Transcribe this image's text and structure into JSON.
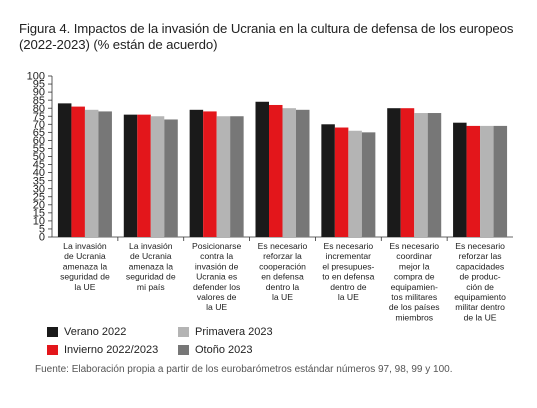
{
  "title": "Figura 4. Impactos de la invasión de Ucrania en la cultura de defensa de los europeos (2022-2023) (% están de acuerdo)",
  "source": "Fuente: Elaboración propia a partir de los eurobarómetros estándar números 97, 98, 99 y 100.",
  "colors": {
    "verano": "#1a1a1a",
    "invierno": "#e3161b",
    "primavera": "#b4b4b4",
    "otono": "#777777"
  },
  "chart_data": {
    "type": "bar",
    "ylim": [
      0,
      100
    ],
    "yticks": [
      0,
      5,
      10,
      15,
      20,
      25,
      30,
      35,
      40,
      45,
      50,
      55,
      60,
      65,
      70,
      75,
      80,
      85,
      90,
      95,
      100
    ],
    "ytick_labels": [
      "0",
      "5",
      "10",
      "15",
      "20",
      "25",
      "30",
      "35",
      "40",
      "45",
      "50",
      "55",
      "60",
      "65",
      "70",
      "75",
      "80",
      "85",
      "90",
      "95",
      "100"
    ],
    "categories": [
      [
        "La invasión",
        "de Ucrania",
        "amenaza la",
        "seguridad de",
        "la UE"
      ],
      [
        "La invasión",
        "de Ucrania",
        "amenaza la",
        "seguridad de",
        "mi país"
      ],
      [
        "Posicionarse",
        "contra la",
        "invasión de",
        "Ucrania es",
        "defender los",
        "valores de",
        "la UE"
      ],
      [
        "Es necesario",
        "reforzar la",
        "cooperación",
        "en defensa",
        "dentro la",
        "la UE"
      ],
      [
        "Es necesario",
        "incrementar",
        "el presupues-",
        "to en defensa",
        "dentro de",
        "la UE"
      ],
      [
        "Es necesario",
        "coordinar",
        "mejor la",
        "compra de",
        "equipamien-",
        "tos militares",
        "de los países",
        "miembros"
      ],
      [
        "Es necesario",
        "reforzar las",
        "capacidades",
        "de produc-",
        "ción de",
        "equipamiento",
        "militar dentro",
        "de la UE"
      ]
    ],
    "series": [
      {
        "name": "Verano 2022",
        "color_key": "verano",
        "values": [
          83,
          76,
          79,
          84,
          70,
          80,
          71
        ]
      },
      {
        "name": "Invierno 2022/2023",
        "color_key": "invierno",
        "values": [
          81,
          76,
          78,
          82,
          68,
          80,
          69
        ]
      },
      {
        "name": "Primavera 2023",
        "color_key": "primavera",
        "values": [
          79,
          75,
          75,
          80,
          66,
          77,
          69
        ]
      },
      {
        "name": "Otoño 2023",
        "color_key": "otono",
        "values": [
          78,
          73,
          75,
          79,
          65,
          77,
          69
        ]
      }
    ],
    "legend": [
      {
        "label": "Verano 2022",
        "color_key": "verano"
      },
      {
        "label": "Primavera 2023",
        "color_key": "primavera"
      },
      {
        "label": "Invierno 2022/2023",
        "color_key": "invierno"
      },
      {
        "label": "Otoño 2023",
        "color_key": "otono"
      }
    ]
  }
}
